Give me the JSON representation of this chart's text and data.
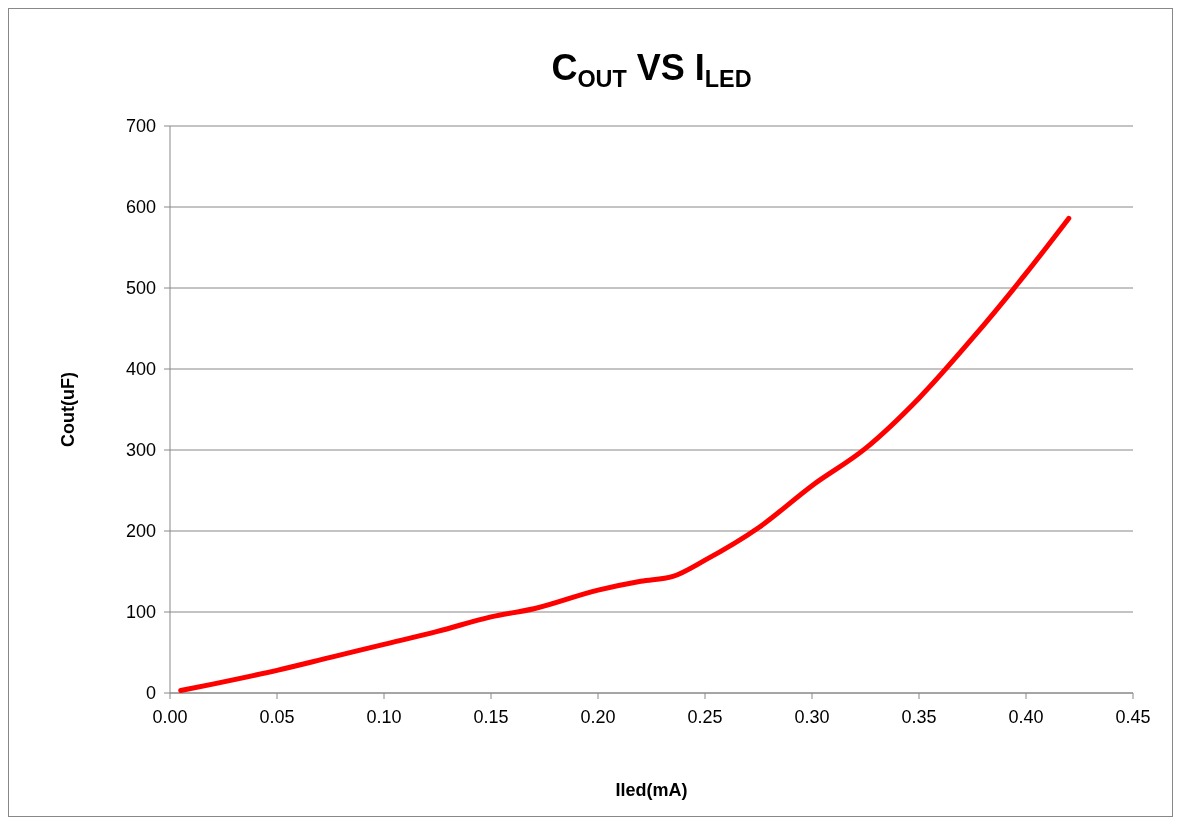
{
  "chart_data": {
    "type": "line",
    "title": "C$_{OUT}$ VS I$_{LED}$",
    "xlabel": "Iled(mA)",
    "ylabel": "Cout(uF)",
    "x": [
      0.005,
      0.02,
      0.05,
      0.075,
      0.1,
      0.125,
      0.15,
      0.17,
      0.2,
      0.22,
      0.235,
      0.25,
      0.275,
      0.3,
      0.325,
      0.35,
      0.375,
      0.4,
      0.42
    ],
    "series": [
      {
        "color": "#ff0000",
        "values": [
          3,
          11,
          28,
          44,
          60,
          76,
          94,
          104,
          127,
          138,
          144,
          164,
          204,
          256,
          302,
          364,
          438,
          518,
          586
        ]
      }
    ],
    "xlim": [
      0,
      0.45
    ],
    "xticks": [
      {
        "value": 0,
        "label": "0.00"
      },
      {
        "value": 0.05,
        "label": "0.05"
      },
      {
        "value": 0.1,
        "label": "0.10"
      },
      {
        "value": 0.15,
        "label": "0.15"
      },
      {
        "value": 0.2,
        "label": "0.20"
      },
      {
        "value": 0.25,
        "label": "0.25"
      },
      {
        "value": 0.3,
        "label": "0.30"
      },
      {
        "value": 0.35,
        "label": "0.35"
      },
      {
        "value": 0.4,
        "label": "0.40"
      },
      {
        "value": 0.45,
        "label": "0.45"
      }
    ],
    "ylim": [
      0,
      700
    ],
    "yticks": [
      0,
      100,
      200,
      300,
      400,
      500,
      600,
      700
    ],
    "grid": "y",
    "marker": "none",
    "line_style": "solid"
  }
}
